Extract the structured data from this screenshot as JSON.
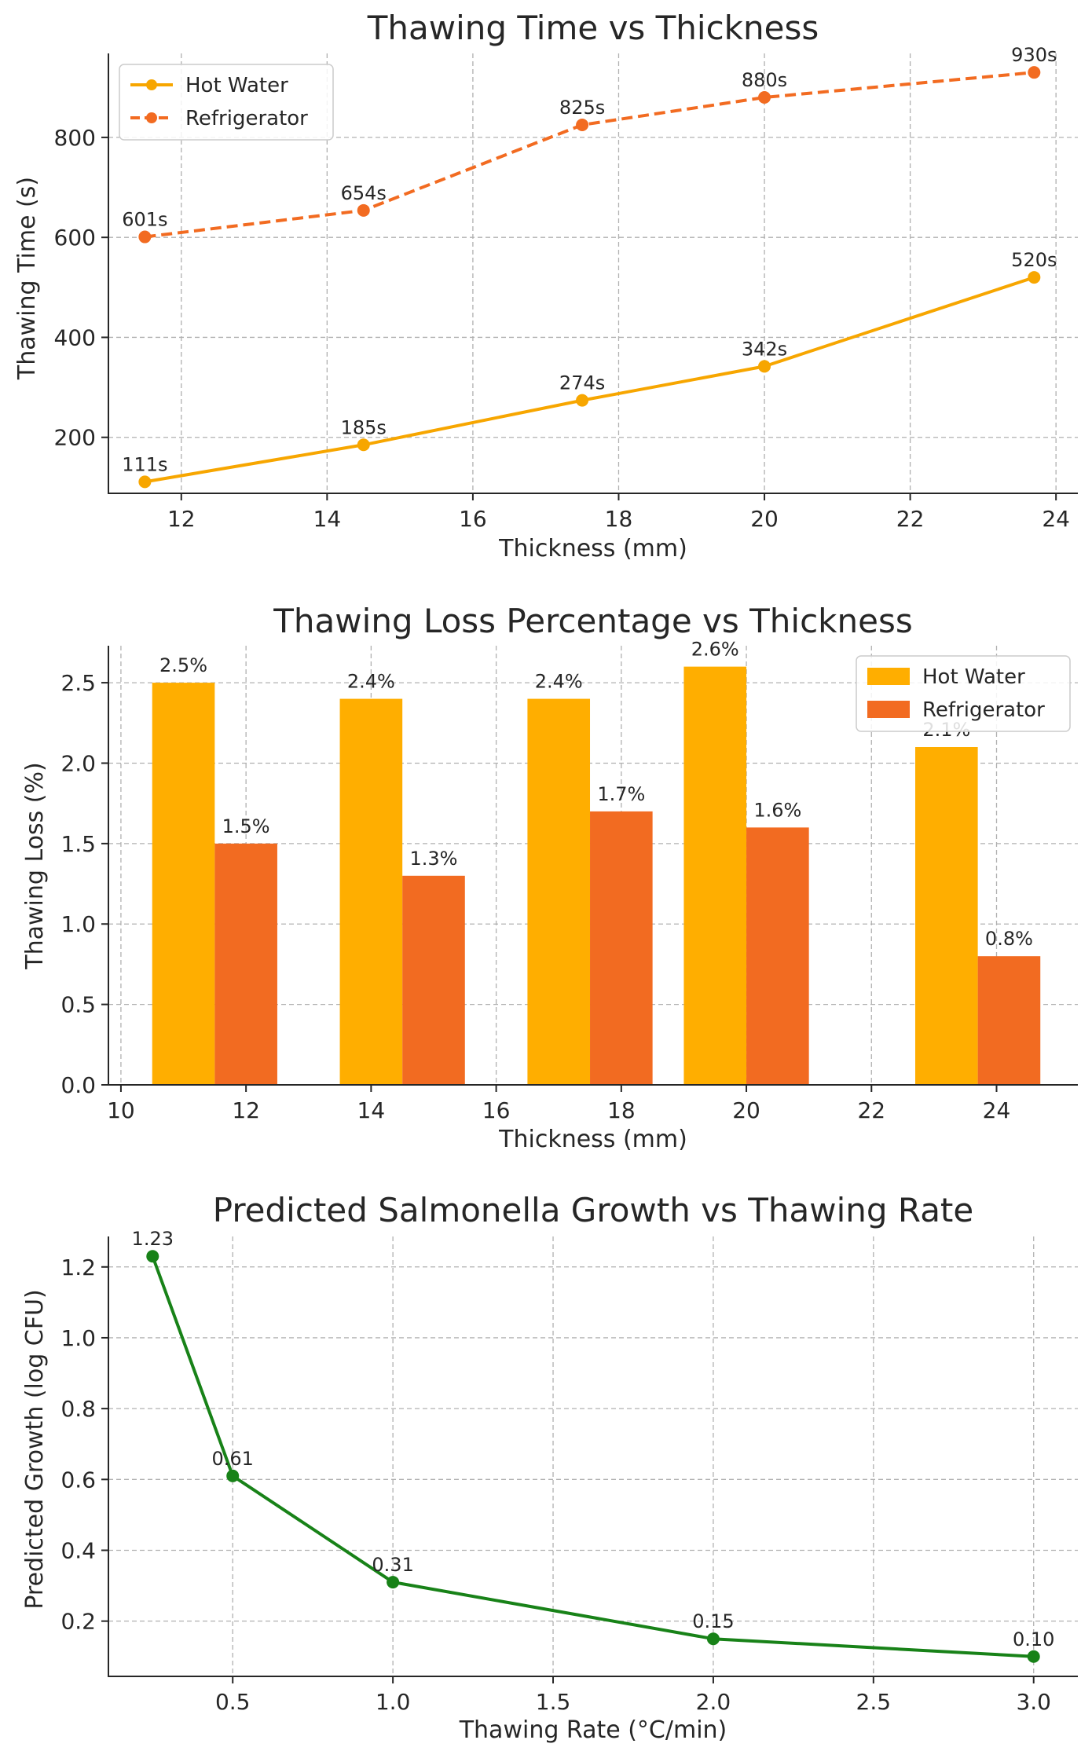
{
  "colors": {
    "hot_water": "#FFAE00",
    "hot_water_line": "#F7A600",
    "refrigerator": "#F26B21",
    "growth": "#188218"
  },
  "chart_data": [
    {
      "type": "line",
      "title": "Thawing Time vs Thickness",
      "xlabel": "Thickness (mm)",
      "ylabel": "Thawing Time (s)",
      "xlim": [
        11.0,
        24.3
      ],
      "ylim": [
        88,
        968
      ],
      "xticks": [
        12,
        14,
        16,
        18,
        20,
        22,
        24
      ],
      "xtick_labels": [
        "12",
        "14",
        "16",
        "18",
        "20",
        "22",
        "24"
      ],
      "yticks": [
        200,
        400,
        600,
        800
      ],
      "ytick_labels": [
        "200",
        "400",
        "600",
        "800"
      ],
      "grid": true,
      "legend": "top-left",
      "series": [
        {
          "name": "Hot Water",
          "style": "solid",
          "color_key": "hot_water_line",
          "x": [
            11.5,
            14.5,
            17.5,
            20.0,
            23.7
          ],
          "values": [
            111,
            185,
            274,
            342,
            520
          ],
          "labels": [
            "111s",
            "185s",
            "274s",
            "342s",
            "520s"
          ]
        },
        {
          "name": "Refrigerator",
          "style": "dashed",
          "color_key": "refrigerator",
          "x": [
            11.5,
            14.5,
            17.5,
            20.0,
            23.7
          ],
          "values": [
            601,
            654,
            825,
            880,
            930
          ],
          "labels": [
            "601s",
            "654s",
            "825s",
            "880s",
            "930s"
          ]
        }
      ]
    },
    {
      "type": "bar",
      "title": "Thawing Loss Percentage vs Thickness",
      "xlabel": "Thickness (mm)",
      "ylabel": "Thawing Loss (%)",
      "xlim": [
        9.8,
        25.3
      ],
      "ylim": [
        0,
        2.73
      ],
      "xticks": [
        10,
        12,
        14,
        16,
        18,
        20,
        22,
        24
      ],
      "xtick_labels": [
        "10",
        "12",
        "14",
        "16",
        "18",
        "20",
        "22",
        "24"
      ],
      "yticks": [
        0.0,
        0.5,
        1.0,
        1.5,
        2.0,
        2.5
      ],
      "ytick_labels": [
        "0.0",
        "0.5",
        "1.0",
        "1.5",
        "2.0",
        "2.5"
      ],
      "bar_width": 1.0,
      "grid": true,
      "legend": "top-right",
      "x": [
        11.5,
        14.5,
        17.5,
        20.0,
        23.7
      ],
      "series": [
        {
          "name": "Hot Water",
          "color_key": "hot_water",
          "offset": -0.5,
          "values": [
            2.5,
            2.4,
            2.4,
            2.6,
            2.1
          ],
          "labels": [
            "2.5%",
            "2.4%",
            "2.4%",
            "2.6%",
            "2.1%"
          ]
        },
        {
          "name": "Refrigerator",
          "color_key": "refrigerator",
          "offset": 0.5,
          "values": [
            1.5,
            1.3,
            1.7,
            1.6,
            0.8
          ],
          "labels": [
            "1.5%",
            "1.3%",
            "1.7%",
            "1.6%",
            "0.8%"
          ]
        }
      ]
    },
    {
      "type": "line",
      "title": "Predicted Salmonella Growth vs Thawing Rate",
      "xlabel": "Thawing Rate (°C/min)",
      "ylabel": "Predicted Growth (log CFU)",
      "xlim": [
        0.112,
        3.138
      ],
      "ylim": [
        0.044,
        1.286
      ],
      "xticks": [
        0.5,
        1.0,
        1.5,
        2.0,
        2.5,
        3.0
      ],
      "xtick_labels": [
        "0.5",
        "1.0",
        "1.5",
        "2.0",
        "2.5",
        "3.0"
      ],
      "yticks": [
        0.2,
        0.4,
        0.6,
        0.8,
        1.0,
        1.2
      ],
      "ytick_labels": [
        "0.2",
        "0.4",
        "0.6",
        "0.8",
        "1.0",
        "1.2"
      ],
      "grid": true,
      "series": [
        {
          "name": "Predicted Growth",
          "style": "solid",
          "color_key": "growth",
          "x": [
            0.25,
            0.5,
            1.0,
            2.0,
            3.0
          ],
          "values": [
            1.23,
            0.61,
            0.31,
            0.15,
            0.1
          ],
          "labels": [
            "1.23",
            "0.61",
            "0.31",
            "0.15",
            "0.10"
          ]
        }
      ]
    }
  ]
}
